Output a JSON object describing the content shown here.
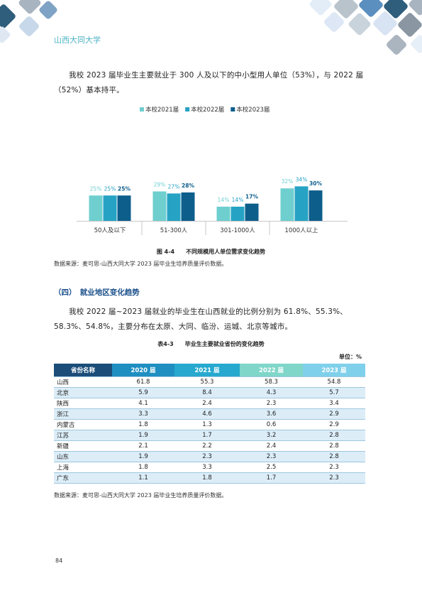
{
  "header": {
    "school": "山西大同大学"
  },
  "paragraphs": [
    "我校 2023 届毕业生主要就业于 300 人及以下的中小型用人单位（53%），与 2022 届（52%）基本持平。",
    "我校 2022 届~2023 届就业的毕业生在山西就业的比例分别为 61.8%、55.3%、58.3%、54.8%，主要分布在太原、大同、临汾、运城、北京等城市。"
  ],
  "chart_data": {
    "type": "bar",
    "categories": [
      "50人及以下",
      "51-300人",
      "301-1000人",
      "1000人以上"
    ],
    "series": [
      {
        "name": "本校2021届",
        "color": "#6fcfcf",
        "values": [
          25,
          29,
          14,
          32
        ],
        "value_labels": [
          "25%",
          "29%",
          "14%",
          "32%"
        ]
      },
      {
        "name": "本校2022届",
        "color": "#26a3c4",
        "values": [
          25,
          27,
          14,
          34
        ],
        "value_labels": [
          "25%",
          "27%",
          "14%",
          "34%"
        ]
      },
      {
        "name": "本校2023届",
        "color": "#0e5e8c",
        "values": [
          25,
          28,
          17,
          30
        ],
        "value_labels": [
          "25%",
          "28%",
          "17%",
          "30%"
        ]
      }
    ],
    "legend": "top"
  },
  "figure": {
    "number": "图 4-4",
    "caption": "不同规模用人单位需求变化趋势",
    "source": "数据来源：麦可思-山西大同大学 2023 届毕业生培养质量评价数据。"
  },
  "section": {
    "number": "（四）",
    "title": "就业地区变化趋势"
  },
  "table": {
    "number": "表4-3",
    "caption": "毕业生主要就业省份的变化趋势",
    "unit": "单位：%",
    "columns": [
      "省份名称",
      "2020 届",
      "2021 届",
      "2022 届",
      "2023 届"
    ],
    "rows": [
      [
        "山西",
        "61.8",
        "55.3",
        "58.3",
        "54.8"
      ],
      [
        "北京",
        "5.9",
        "8.4",
        "4.3",
        "5.7"
      ],
      [
        "陕西",
        "4.1",
        "2.4",
        "2.3",
        "3.4"
      ],
      [
        "浙江",
        "3.3",
        "4.6",
        "3.6",
        "2.9"
      ],
      [
        "内蒙古",
        "1.8",
        "1.3",
        "0.6",
        "2.9"
      ],
      [
        "江苏",
        "1.9",
        "1.7",
        "3.2",
        "2.8"
      ],
      [
        "新疆",
        "2.1",
        "2.2",
        "2.4",
        "2.8"
      ],
      [
        "山东",
        "1.9",
        "2.3",
        "2.3",
        "2.8"
      ],
      [
        "上海",
        "1.8",
        "3.3",
        "2.5",
        "2.3"
      ],
      [
        "广东",
        "1.1",
        "1.8",
        "1.7",
        "2.3"
      ]
    ],
    "source": "数据来源：麦可思-山西大同大学 2023 届毕业生培养质量评价数据。"
  },
  "page_number": "84"
}
